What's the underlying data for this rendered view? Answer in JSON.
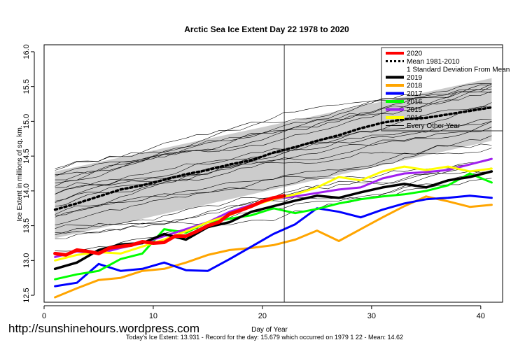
{
  "chart_data": {
    "type": "line",
    "title": "Arctic Sea Ice Extent Day 22 1978 to 2020",
    "xlabel": "Day of Year",
    "ylabel": "Ice Extent in millions of sq. km.",
    "xlim": [
      0,
      42
    ],
    "ylim": [
      12.4,
      16.1
    ],
    "xticks": [
      "0",
      "10",
      "20",
      "30",
      "40"
    ],
    "yticks": [
      "12.5",
      "13.0",
      "13.5",
      "14.0",
      "14.5",
      "15.0",
      "15.5",
      "16.0"
    ],
    "marker_day": 22,
    "watermark": "http://sunshinehours.wordpress.com",
    "footer": "Today's Ice Extent: 13.931  - Record for the day: 15.679 which occurred on 1979 1 22  - Mean: 14.62",
    "legend_position": "top-right",
    "legend": [
      {
        "label": "2020",
        "color": "#ff0000",
        "style": "solid"
      },
      {
        "label": "Mean 1981-2010",
        "color": "#000000",
        "style": "dashed"
      },
      {
        "label": "1 Standard Deviation From Mean",
        "color": "#cccccc",
        "style": "band"
      },
      {
        "label": "2019",
        "color": "#000000",
        "style": "solid"
      },
      {
        "label": "2018",
        "color": "#ffa500",
        "style": "solid"
      },
      {
        "label": "2017",
        "color": "#0000ff",
        "style": "solid"
      },
      {
        "label": "2016",
        "color": "#00ff00",
        "style": "solid"
      },
      {
        "label": "2015",
        "color": "#a020f0",
        "style": "solid"
      },
      {
        "label": "2014",
        "color": "#ffff00",
        "style": "solid"
      },
      {
        "label": "Every Other Year",
        "color": "#000000",
        "style": "thin"
      }
    ],
    "band": {
      "x": [
        1,
        41
      ],
      "upper": [
        14.28,
        15.62
      ],
      "lower": [
        13.32,
        14.72
      ]
    },
    "series": [
      {
        "name": "Mean 1981-2010",
        "color": "#000000",
        "style": "dashed",
        "x": [
          1,
          3,
          5,
          7,
          9,
          11,
          13,
          15,
          17,
          19,
          21,
          23,
          25,
          27,
          29,
          31,
          33,
          35,
          37,
          39,
          41
        ],
        "y": [
          13.73,
          13.82,
          13.92,
          14.02,
          14.08,
          14.16,
          14.24,
          14.3,
          14.38,
          14.44,
          14.55,
          14.63,
          14.72,
          14.8,
          14.9,
          14.98,
          15.03,
          15.05,
          15.1,
          15.15,
          15.2
        ]
      },
      {
        "name": "2020",
        "color": "#ff0000",
        "width": 5,
        "x": [
          1,
          2,
          3,
          4,
          5,
          6,
          7,
          8,
          9,
          10,
          11,
          12,
          13,
          14,
          15,
          16,
          17,
          18,
          19,
          20,
          21,
          22
        ],
        "y": [
          13.1,
          13.08,
          13.15,
          13.13,
          13.1,
          13.18,
          13.2,
          13.22,
          13.27,
          13.25,
          13.26,
          13.35,
          13.35,
          13.42,
          13.5,
          13.55,
          13.67,
          13.72,
          13.78,
          13.85,
          13.9,
          13.93
        ]
      },
      {
        "name": "2019",
        "color": "#000000",
        "width": 3.5,
        "x": [
          1,
          3,
          5,
          7,
          9,
          11,
          13,
          15,
          17,
          19,
          21,
          23,
          25,
          27,
          29,
          31,
          33,
          35,
          37,
          39,
          41
        ],
        "y": [
          12.88,
          12.97,
          13.15,
          13.23,
          13.25,
          13.38,
          13.3,
          13.48,
          13.55,
          13.7,
          13.78,
          13.86,
          13.93,
          13.9,
          13.98,
          14.05,
          14.1,
          14.05,
          14.15,
          14.2,
          14.28
        ]
      },
      {
        "name": "2018",
        "color": "#ffa500",
        "width": 3,
        "x": [
          1,
          3,
          5,
          7,
          9,
          11,
          13,
          15,
          17,
          19,
          21,
          23,
          25,
          27,
          29,
          31,
          33,
          35,
          37,
          39,
          41
        ],
        "y": [
          12.47,
          12.6,
          12.72,
          12.75,
          12.85,
          12.88,
          12.97,
          13.08,
          13.15,
          13.18,
          13.22,
          13.3,
          13.43,
          13.28,
          13.45,
          13.62,
          13.78,
          13.92,
          13.85,
          13.77,
          13.8
        ]
      },
      {
        "name": "2017",
        "color": "#0000ff",
        "width": 3,
        "x": [
          1,
          3,
          5,
          7,
          9,
          11,
          13,
          15,
          17,
          19,
          21,
          23,
          25,
          27,
          29,
          31,
          33,
          35,
          37,
          39,
          41
        ],
        "y": [
          12.63,
          12.68,
          12.95,
          12.85,
          12.88,
          12.97,
          12.86,
          12.85,
          13.02,
          13.2,
          13.38,
          13.52,
          13.75,
          13.7,
          13.62,
          13.73,
          13.82,
          13.88,
          13.9,
          13.93,
          13.9
        ]
      },
      {
        "name": "2016",
        "color": "#00ff00",
        "width": 3,
        "x": [
          1,
          3,
          5,
          7,
          9,
          11,
          13,
          15,
          17,
          19,
          21,
          23,
          25,
          27,
          29,
          31,
          33,
          35,
          37,
          39,
          41
        ],
        "y": [
          12.73,
          12.8,
          12.85,
          13.02,
          13.1,
          13.45,
          13.4,
          13.55,
          13.6,
          13.65,
          13.75,
          13.68,
          13.74,
          13.82,
          13.88,
          13.92,
          13.95,
          14.0,
          14.08,
          14.25,
          14.12
        ]
      },
      {
        "name": "2015",
        "color": "#a020f0",
        "width": 3,
        "x": [
          1,
          3,
          5,
          7,
          9,
          11,
          13,
          15,
          17,
          19,
          21,
          23,
          25,
          27,
          29,
          31,
          33,
          35,
          37,
          39,
          41
        ],
        "y": [
          13.05,
          13.13,
          13.1,
          13.18,
          13.25,
          13.35,
          13.45,
          13.55,
          13.7,
          13.8,
          13.88,
          13.92,
          13.97,
          14.02,
          14.05,
          14.18,
          14.25,
          14.27,
          14.3,
          14.38,
          14.46
        ]
      },
      {
        "name": "2014",
        "color": "#ffff00",
        "width": 3,
        "x": [
          1,
          3,
          5,
          7,
          9,
          11,
          13,
          15,
          17,
          19,
          21,
          23,
          25,
          27,
          29,
          31,
          33,
          35,
          37,
          39,
          41
        ],
        "y": [
          13.0,
          13.08,
          13.12,
          13.1,
          13.2,
          13.3,
          13.42,
          13.55,
          13.65,
          13.78,
          13.88,
          13.95,
          14.05,
          14.2,
          14.15,
          14.28,
          14.35,
          14.3,
          14.35,
          14.28,
          14.32
        ]
      }
    ]
  }
}
